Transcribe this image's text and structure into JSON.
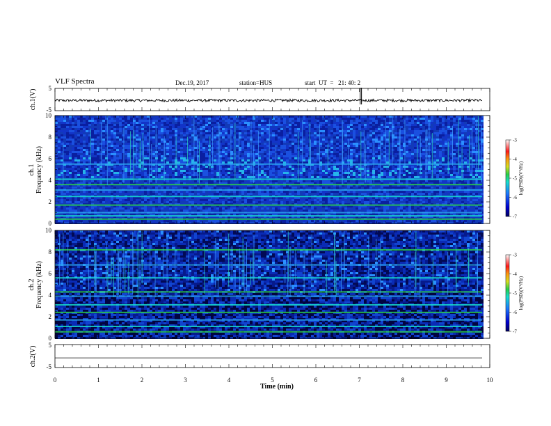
{
  "header": {
    "title": "VLF Spectra",
    "date": "Dec.19, 2017",
    "station": "station=HUS",
    "start": "start  UT  =   21: 40: 2"
  },
  "chart_data": [
    {
      "type": "line",
      "id": "ch1-waveform",
      "ylabel": "ch.1(V)",
      "ylim": [
        -5,
        5
      ],
      "yticks": [
        "5",
        "-5"
      ],
      "xlim": [
        0,
        10
      ],
      "description_level": -0.4,
      "spike_x": [
        7.02,
        7.05
      ]
    },
    {
      "type": "heatmap",
      "id": "ch1-spectrogram",
      "ylabel_line1": "ch.1",
      "ylabel_line2": "Frequency (kHz)",
      "ylim": [
        0,
        10
      ],
      "yticks": [
        "0",
        "2",
        "4",
        "6",
        "8",
        "10"
      ],
      "xlim": [
        0,
        9.83
      ],
      "bright_lines_khz": [
        0.4,
        0.7,
        1.0,
        1.7,
        2.5,
        3.1,
        3.6,
        4.1,
        5.5
      ],
      "colorbar": {
        "label": "log(PSD)(V²/Hz)",
        "range": [
          -7,
          -3
        ],
        "ticks": [
          "-3",
          "-4",
          "-5",
          "-6",
          "-7"
        ]
      }
    },
    {
      "type": "heatmap",
      "id": "ch2-spectrogram",
      "ylabel_line1": "ch.2",
      "ylabel_line2": "Frequency (kHz)",
      "ylim": [
        0,
        10
      ],
      "yticks": [
        "0",
        "2",
        "4",
        "6",
        "8",
        "10"
      ],
      "xlim": [
        0,
        9.83
      ],
      "bright_lines_khz": [
        0.6,
        1.1,
        1.7,
        2.4,
        3.1,
        3.9,
        4.3,
        5.6,
        6.8,
        8.2
      ],
      "colorbar": {
        "label": "log(PSD)(V²/Hz)",
        "range": [
          -7,
          -3
        ],
        "ticks": [
          "-3",
          "-4",
          "-5",
          "-6",
          "-7"
        ]
      }
    },
    {
      "type": "line",
      "id": "ch2-waveform",
      "ylabel": "ch.2(V)",
      "ylim": [
        -5,
        5
      ],
      "yticks": [
        "5",
        "-5"
      ],
      "xlim": [
        0,
        10
      ],
      "level": -0.8
    }
  ],
  "xaxis": {
    "label": "Time (min)",
    "ticks": [
      "0",
      "1",
      "2",
      "3",
      "4",
      "5",
      "6",
      "7",
      "8",
      "9",
      "10"
    ]
  },
  "colors": {
    "low": "#00007a",
    "mid": "#1e5bff",
    "cyan": "#18e0d0",
    "green": "#2ad04a",
    "yellow": "#ffd21e",
    "red": "#ff2a2a",
    "high": "#ffffff"
  }
}
